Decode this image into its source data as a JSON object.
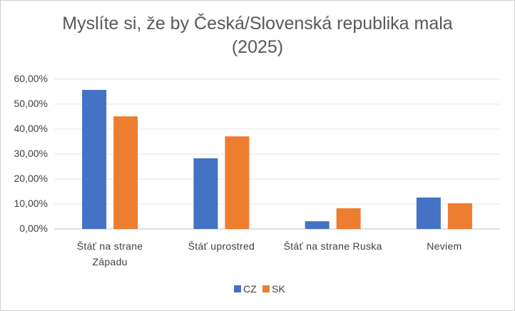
{
  "chart_data": {
    "type": "bar",
    "title": "Myslíte si, že by Česká/Slovenská republika mala (2025)",
    "categories": [
      "Štáť na strane Západu",
      "Štáť uprostred",
      "Štáť na strane Ruska",
      "Neviem"
    ],
    "series": [
      {
        "name": "CZ",
        "color": "#4472c4",
        "values": [
          55.7,
          28.3,
          3.1,
          12.6
        ]
      },
      {
        "name": "SK",
        "color": "#ed7d31",
        "values": [
          45.1,
          37.1,
          8.3,
          10.3
        ]
      }
    ],
    "ylim": [
      0,
      60
    ],
    "yticks": [
      {
        "value": 0,
        "label": "0,00%"
      },
      {
        "value": 10,
        "label": "10,00%"
      },
      {
        "value": 20,
        "label": "20,00%"
      },
      {
        "value": 30,
        "label": "30,00%"
      },
      {
        "value": 40,
        "label": "40,00%"
      },
      {
        "value": 50,
        "label": "50,00%"
      },
      {
        "value": 60,
        "label": "60,00%"
      }
    ],
    "grid": true,
    "legend": "bottom"
  }
}
